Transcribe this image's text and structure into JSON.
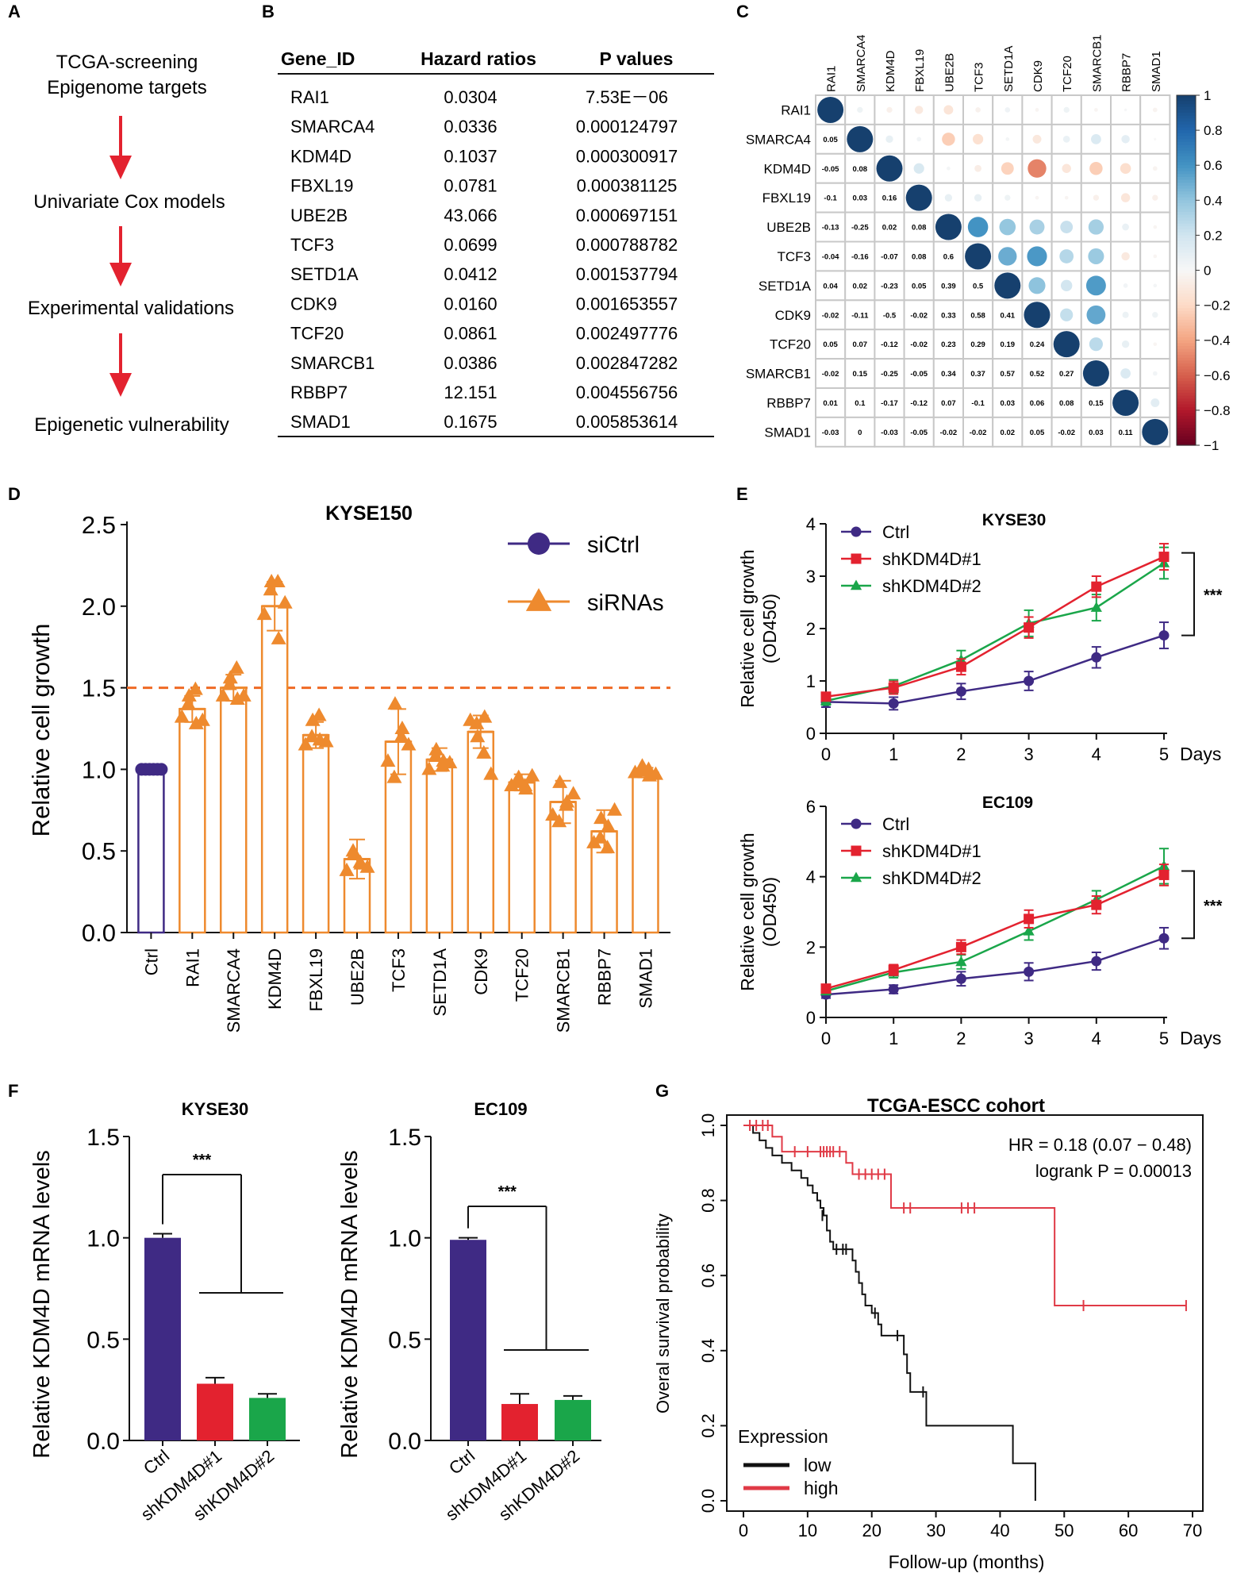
{
  "panel_labels": {
    "A": "A",
    "B": "B",
    "C": "C",
    "D": "D",
    "E": "E",
    "F": "F",
    "G": "G"
  },
  "panelA": {
    "steps": [
      [
        "TCGA-screening",
        "Epigenome targets"
      ],
      [
        "Univariate Cox models"
      ],
      [
        "Experimental validations"
      ],
      [
        "Epigenetic vulnerability"
      ]
    ]
  },
  "panelB": {
    "headers": [
      "Gene_ID",
      "Hazard ratios",
      "P values"
    ],
    "rows": [
      [
        "RAI1",
        "0.0304",
        "7.53E－06"
      ],
      [
        "SMARCA4",
        "0.0336",
        "0.000124797"
      ],
      [
        "KDM4D",
        "0.1037",
        "0.000300917"
      ],
      [
        "FBXL19",
        "0.0781",
        "0.000381125"
      ],
      [
        "UBE2B",
        "43.066",
        "0.000697151"
      ],
      [
        "TCF3",
        "0.0699",
        "0.000788782"
      ],
      [
        "SETD1A",
        "0.0412",
        "0.001537794"
      ],
      [
        "CDK9",
        "0.0160",
        "0.001653557"
      ],
      [
        "TCF20",
        "0.0861",
        "0.002497776"
      ],
      [
        "SMARCB1",
        "0.0386",
        "0.002847282"
      ],
      [
        "RBBP7",
        "12.151",
        "0.004556756"
      ],
      [
        "SMAD1",
        "0.1675",
        "0.005853614"
      ]
    ]
  },
  "colors": {
    "purple": "#3f2a84",
    "orange": "#ee8a2e",
    "red": "#e3222f",
    "green": "#1aa64a",
    "dashed": "#ef6a24",
    "survival_low": "#111111",
    "survival_high": "#e03a46"
  },
  "chart_data": [
    {
      "id": "C",
      "type": "heatmap",
      "genes": [
        "RAI1",
        "SMARCA4",
        "KDM4D",
        "FBXL19",
        "UBE2B",
        "TCF3",
        "SETD1A",
        "CDK9",
        "TCF20",
        "SMARCB1",
        "RBBP7",
        "SMAD1"
      ],
      "matrix": [
        [
          1,
          0.05,
          -0.05,
          -0.1,
          -0.13,
          -0.04,
          0.04,
          -0.02,
          0.05,
          -0.02,
          0.01,
          -0.03
        ],
        [
          0.05,
          1,
          0.08,
          0.03,
          -0.25,
          -0.16,
          0.02,
          -0.11,
          0.07,
          0.15,
          0.1,
          0
        ],
        [
          -0.05,
          0.08,
          1,
          0.16,
          0.02,
          -0.07,
          -0.23,
          -0.5,
          -0.12,
          -0.25,
          -0.17,
          -0.03
        ],
        [
          -0.1,
          0.03,
          0.16,
          1,
          0.08,
          0.08,
          0.05,
          -0.02,
          -0.02,
          -0.05,
          -0.12,
          -0.05
        ],
        [
          -0.13,
          -0.25,
          0.02,
          0.08,
          1,
          0.6,
          0.39,
          0.33,
          0.23,
          0.34,
          0.07,
          -0.02
        ],
        [
          -0.04,
          -0.16,
          -0.07,
          0.08,
          0.6,
          1,
          0.5,
          0.58,
          0.29,
          0.37,
          -0.1,
          -0.02
        ],
        [
          0.04,
          0.02,
          -0.23,
          0.05,
          0.39,
          0.5,
          1,
          0.41,
          0.19,
          0.57,
          0.03,
          0.02
        ],
        [
          -0.02,
          -0.11,
          -0.5,
          -0.02,
          0.33,
          0.58,
          0.41,
          1,
          0.24,
          0.52,
          0.06,
          0.05
        ],
        [
          0.05,
          0.07,
          -0.12,
          -0.02,
          0.23,
          0.29,
          0.19,
          0.24,
          1,
          0.27,
          0.08,
          -0.02
        ],
        [
          -0.02,
          0.15,
          -0.25,
          -0.05,
          0.34,
          0.37,
          0.57,
          0.52,
          0.27,
          1,
          0.15,
          0.03
        ],
        [
          0.01,
          0.1,
          -0.17,
          -0.12,
          0.07,
          -0.1,
          0.03,
          0.06,
          0.08,
          0.15,
          1,
          0.11
        ],
        [
          -0.03,
          0,
          -0.03,
          -0.05,
          -0.02,
          -0.02,
          0.02,
          0.05,
          -0.02,
          0.03,
          0.11,
          1
        ]
      ],
      "colorbar_ticks": [
        "1",
        "0.8",
        "0.6",
        "0.4",
        "0.2",
        "0",
        "−0.2",
        "−0.4",
        "−0.6",
        "−0.8",
        "−1"
      ]
    },
    {
      "id": "D",
      "type": "bar",
      "title": "KYSE150",
      "ylabel": "Relative cell growth",
      "ylim": [
        0,
        2.5
      ],
      "yticks": [
        "0.0",
        "0.5",
        "1.0",
        "1.5",
        "2.0",
        "2.5"
      ],
      "threshold": 1.5,
      "categories": [
        "Ctrl",
        "RAI1",
        "SMARCA4",
        "KDM4D",
        "FBXL19",
        "UBE2B",
        "TCF3",
        "SETD1A",
        "CDK9",
        "TCF20",
        "SMARCB1",
        "RBBP7",
        "SMAD1"
      ],
      "values": [
        1.0,
        1.37,
        1.5,
        2.0,
        1.21,
        0.45,
        1.17,
        1.06,
        1.23,
        0.92,
        0.8,
        0.62,
        0.98
      ],
      "errors": [
        0.01,
        0.08,
        0.08,
        0.15,
        0.08,
        0.12,
        0.2,
        0.07,
        0.1,
        0.05,
        0.13,
        0.13,
        0.03
      ],
      "points": [
        [
          1.0,
          1.0,
          1.0,
          1.0,
          1.0,
          1.0
        ],
        [
          1.32,
          1.45,
          1.28,
          1.4,
          1.49,
          1.3
        ],
        [
          1.45,
          1.56,
          1.43,
          1.52,
          1.62,
          1.45
        ],
        [
          1.95,
          2.15,
          1.8,
          2.1,
          2.15,
          2.02
        ],
        [
          1.15,
          1.3,
          1.18,
          1.2,
          1.33,
          1.17
        ],
        [
          0.38,
          0.48,
          0.42,
          0.5,
          0.43,
          0.4
        ],
        [
          1.05,
          1.4,
          1.25,
          0.95,
          1.2,
          1.15
        ],
        [
          1.0,
          1.12,
          1.05,
          1.08,
          1.02,
          1.04
        ],
        [
          1.3,
          1.2,
          1.32,
          1.28,
          1.1,
          0.97
        ],
        [
          0.9,
          0.95,
          0.88,
          0.92,
          0.9,
          0.96
        ],
        [
          0.72,
          0.92,
          0.8,
          0.68,
          0.78,
          0.85
        ],
        [
          0.55,
          0.7,
          0.65,
          0.58,
          0.52,
          0.75
        ],
        [
          0.98,
          1.02,
          0.96,
          0.99,
          1.0,
          0.97
        ]
      ],
      "legend": [
        "siCtrl",
        "siRNAs"
      ]
    },
    {
      "id": "E1",
      "type": "line",
      "title": "KYSE30",
      "ylabel": [
        "Relative cell growth",
        "(OD450)"
      ],
      "x": [
        0,
        1,
        2,
        3,
        4,
        5
      ],
      "xticks": [
        "0",
        "1",
        "2",
        "3",
        "4",
        "5"
      ],
      "xunit": "Days",
      "ylim": [
        0,
        4
      ],
      "yticks": [
        "0",
        "1",
        "2",
        "3",
        "4"
      ],
      "series": [
        {
          "name": "Ctrl",
          "values": [
            0.6,
            0.57,
            0.8,
            1.0,
            1.45,
            1.87
          ],
          "errors": [
            0.1,
            0.12,
            0.15,
            0.18,
            0.2,
            0.25
          ]
        },
        {
          "name": "shKDM4D#1",
          "values": [
            0.7,
            0.87,
            1.27,
            2.02,
            2.8,
            3.37
          ],
          "errors": [
            0.08,
            0.12,
            0.15,
            0.2,
            0.2,
            0.25
          ]
        },
        {
          "name": "shKDM4D#2",
          "values": [
            0.62,
            0.9,
            1.4,
            2.1,
            2.4,
            3.25
          ],
          "errors": [
            0.08,
            0.12,
            0.18,
            0.25,
            0.25,
            0.3
          ]
        }
      ],
      "significance": "***"
    },
    {
      "id": "E2",
      "type": "line",
      "title": "EC109",
      "ylabel": [
        "Relative cell growth",
        "(OD450)"
      ],
      "x": [
        0,
        1,
        2,
        3,
        4,
        5
      ],
      "xticks": [
        "0",
        "1",
        "2",
        "3",
        "4",
        "5"
      ],
      "xunit": "Days",
      "ylim": [
        0,
        6
      ],
      "yticks": [
        "0",
        "2",
        "4",
        "6"
      ],
      "series": [
        {
          "name": "Ctrl",
          "values": [
            0.65,
            0.8,
            1.1,
            1.3,
            1.6,
            2.25
          ],
          "errors": [
            0.1,
            0.12,
            0.2,
            0.25,
            0.25,
            0.3
          ]
        },
        {
          "name": "shKDM4D#1",
          "values": [
            0.82,
            1.35,
            2.0,
            2.8,
            3.2,
            4.05
          ],
          "errors": [
            0.1,
            0.15,
            0.2,
            0.25,
            0.25,
            0.3
          ]
        },
        {
          "name": "shKDM4D#2",
          "values": [
            0.75,
            1.28,
            1.58,
            2.45,
            3.35,
            4.3
          ],
          "errors": [
            0.1,
            0.15,
            0.2,
            0.25,
            0.25,
            0.5
          ]
        }
      ],
      "significance": "***"
    },
    {
      "id": "F1",
      "type": "bar",
      "title": "KYSE30",
      "ylabel": "Relative KDM4D mRNA levels",
      "ylim": [
        0,
        1.5
      ],
      "yticks": [
        "0.0",
        "0.5",
        "1.0",
        "1.5"
      ],
      "categories": [
        "Ctrl",
        "shKDM4D#1",
        "shKDM4D#2"
      ],
      "values": [
        1.0,
        0.28,
        0.21
      ],
      "errors": [
        0.02,
        0.03,
        0.02
      ],
      "significance": "***"
    },
    {
      "id": "F2",
      "type": "bar",
      "title": "EC109",
      "ylabel": "Relative KDM4D mRNA levels",
      "ylim": [
        0,
        1.5
      ],
      "yticks": [
        "0.0",
        "0.5",
        "1.0",
        "1.5"
      ],
      "categories": [
        "Ctrl",
        "shKDM4D#1",
        "shKDM4D#2"
      ],
      "values": [
        0.99,
        0.18,
        0.2
      ],
      "errors": [
        0.01,
        0.05,
        0.02
      ],
      "significance": "***"
    },
    {
      "id": "G",
      "type": "line",
      "title": "TCGA-ESCC cohort",
      "xlabel": "Follow-up (months)",
      "ylabel": "Overal survival probability",
      "xlim": [
        0,
        70
      ],
      "ylim": [
        0,
        1
      ],
      "xticks": [
        "0",
        "10",
        "20",
        "30",
        "40",
        "50",
        "60",
        "70"
      ],
      "yticks": [
        "0.0",
        "0.2",
        "0.4",
        "0.6",
        "0.8",
        "1.0"
      ],
      "annotation": [
        "HR = 0.18 (0.07 − 0.48)",
        "logrank P = 0.00013"
      ],
      "legend_title": "Expression",
      "series": [
        {
          "name": "low",
          "steps": [
            [
              0,
              1.0
            ],
            [
              1.5,
              0.98
            ],
            [
              2.5,
              0.96
            ],
            [
              3.5,
              0.94
            ],
            [
              4.5,
              0.92
            ],
            [
              6,
              0.9
            ],
            [
              7.5,
              0.88
            ],
            [
              9,
              0.86
            ],
            [
              10,
              0.84
            ],
            [
              10.8,
              0.82
            ],
            [
              11.5,
              0.8
            ],
            [
              12,
              0.78
            ],
            [
              12.5,
              0.76
            ],
            [
              13,
              0.72
            ],
            [
              13.5,
              0.69
            ],
            [
              14,
              0.67
            ],
            [
              17,
              0.64
            ],
            [
              17.5,
              0.61
            ],
            [
              18,
              0.58
            ],
            [
              18.5,
              0.55
            ],
            [
              19,
              0.52
            ],
            [
              20,
              0.5
            ],
            [
              21,
              0.47
            ],
            [
              21.5,
              0.44
            ],
            [
              25,
              0.39
            ],
            [
              25.5,
              0.34
            ],
            [
              26,
              0.29
            ],
            [
              28.5,
              0.2
            ],
            [
              42,
              0.1
            ],
            [
              45.5,
              0.0
            ]
          ],
          "censors": [
            [
              12.3,
              0.76
            ],
            [
              14.5,
              0.67
            ],
            [
              15.5,
              0.67
            ],
            [
              16,
              0.67
            ],
            [
              20.5,
              0.5
            ],
            [
              24,
              0.44
            ],
            [
              28,
              0.29
            ]
          ]
        },
        {
          "name": "high",
          "steps": [
            [
              0,
              1.0
            ],
            [
              4.5,
              0.97
            ],
            [
              6,
              0.93
            ],
            [
              16,
              0.9
            ],
            [
              17,
              0.87
            ],
            [
              23,
              0.78
            ],
            [
              48.5,
              0.52
            ],
            [
              69,
              0.52
            ]
          ],
          "censors": [
            [
              1,
              1.0
            ],
            [
              2,
              1.0
            ],
            [
              3,
              1.0
            ],
            [
              3.8,
              1.0
            ],
            [
              8,
              0.93
            ],
            [
              10,
              0.93
            ],
            [
              12,
              0.93
            ],
            [
              12.5,
              0.93
            ],
            [
              13,
              0.93
            ],
            [
              13.5,
              0.93
            ],
            [
              14,
              0.93
            ],
            [
              15,
              0.93
            ],
            [
              18,
              0.87
            ],
            [
              19,
              0.87
            ],
            [
              20,
              0.87
            ],
            [
              21,
              0.87
            ],
            [
              22,
              0.87
            ],
            [
              25,
              0.78
            ],
            [
              26,
              0.78
            ],
            [
              34,
              0.78
            ],
            [
              35,
              0.78
            ],
            [
              36,
              0.78
            ],
            [
              53,
              0.52
            ],
            [
              69,
              0.52
            ]
          ]
        }
      ]
    }
  ]
}
